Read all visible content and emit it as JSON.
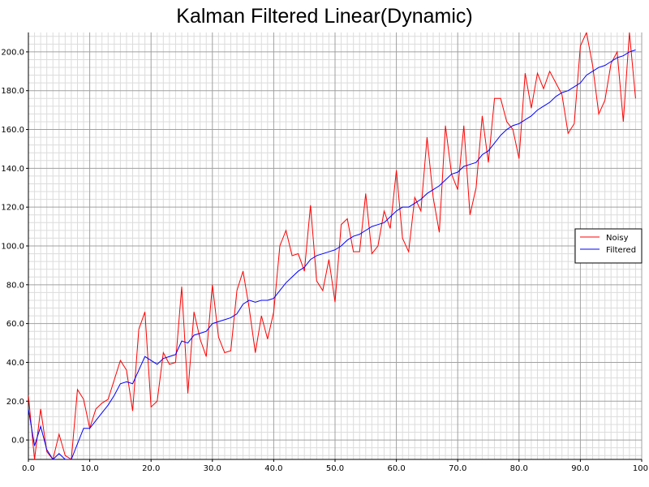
{
  "chart_data": {
    "type": "line",
    "title": "Kalman Filtered Linear(Dynamic)",
    "xlabel": "",
    "ylabel": "",
    "xlim": [
      0,
      100
    ],
    "ylim": [
      -10,
      210
    ],
    "x_major_step": 10,
    "y_major_step": 20,
    "x_minor_step": 1,
    "y_minor_step": 4,
    "x_tick_labels": [
      "0.0",
      "10.0",
      "20.0",
      "30.0",
      "40.0",
      "50.0",
      "60.0",
      "70.0",
      "80.0",
      "90.0",
      "100."
    ],
    "y_tick_labels": [
      "0.0",
      "20.0",
      "40.0",
      "60.0",
      "80.0",
      "100.0",
      "120.0",
      "140.0",
      "160.0",
      "180.0",
      "200.0"
    ],
    "grid": true,
    "legend_position": "right",
    "x": [
      0,
      1,
      2,
      3,
      4,
      5,
      6,
      7,
      8,
      9,
      10,
      11,
      12,
      13,
      14,
      15,
      16,
      17,
      18,
      19,
      20,
      21,
      22,
      23,
      24,
      25,
      26,
      27,
      28,
      29,
      30,
      31,
      32,
      33,
      34,
      35,
      36,
      37,
      38,
      39,
      40,
      41,
      42,
      43,
      44,
      45,
      46,
      47,
      48,
      49,
      50,
      51,
      52,
      53,
      54,
      55,
      56,
      57,
      58,
      59,
      60,
      61,
      62,
      63,
      64,
      65,
      66,
      67,
      68,
      69,
      70,
      71,
      72,
      73,
      74,
      75,
      76,
      77,
      78,
      79,
      80,
      81,
      82,
      83,
      84,
      85,
      86,
      87,
      88,
      89,
      90,
      91,
      92,
      93,
      94,
      95,
      96,
      97,
      98,
      99
    ],
    "series": [
      {
        "name": "Noisy",
        "color": "#ff0000",
        "values": [
          23,
          -10,
          16,
          -6,
          -10,
          3,
          -8,
          -10,
          26,
          21,
          6,
          16,
          19,
          21,
          31,
          41,
          36,
          15,
          57,
          66,
          17,
          20,
          45,
          39,
          40,
          79,
          24,
          66,
          52,
          43,
          80,
          53,
          45,
          46,
          77,
          87,
          68,
          45,
          64,
          52,
          66,
          100,
          108,
          95,
          96,
          87,
          121,
          82,
          77,
          93,
          71,
          111,
          114,
          97,
          97,
          127,
          96,
          100,
          118,
          109,
          139,
          104,
          97,
          125,
          118,
          156,
          125,
          107,
          162,
          137,
          129,
          162,
          116,
          130,
          167,
          143,
          176,
          176,
          164,
          160,
          145,
          189,
          171,
          189,
          181,
          190,
          184,
          178,
          158,
          163,
          203,
          210,
          193,
          168,
          175,
          194,
          200,
          164,
          210,
          176
        ]
      },
      {
        "name": "Filtered",
        "color": "#0000ff",
        "values": [
          16,
          -3,
          7,
          -5,
          -10,
          -7,
          -10,
          -10,
          -2,
          6,
          6,
          10,
          14,
          18,
          23,
          29,
          30,
          29,
          36,
          43,
          41,
          39,
          42,
          43,
          44,
          51,
          50,
          54,
          55,
          56,
          60,
          61,
          62,
          63,
          65,
          70,
          72,
          71,
          72,
          72,
          73,
          77,
          81,
          84,
          87,
          89,
          93,
          95,
          96,
          97,
          98,
          100,
          103,
          105,
          106,
          108,
          110,
          111,
          112,
          115,
          118,
          120,
          120,
          122,
          124,
          127,
          129,
          131,
          134,
          137,
          138,
          141,
          142,
          143,
          147,
          149,
          153,
          157,
          160,
          162,
          163,
          165,
          167,
          170,
          172,
          174,
          177,
          179,
          180,
          182,
          184,
          188,
          190,
          192,
          193,
          195,
          197,
          198,
          200,
          201
        ]
      }
    ]
  }
}
